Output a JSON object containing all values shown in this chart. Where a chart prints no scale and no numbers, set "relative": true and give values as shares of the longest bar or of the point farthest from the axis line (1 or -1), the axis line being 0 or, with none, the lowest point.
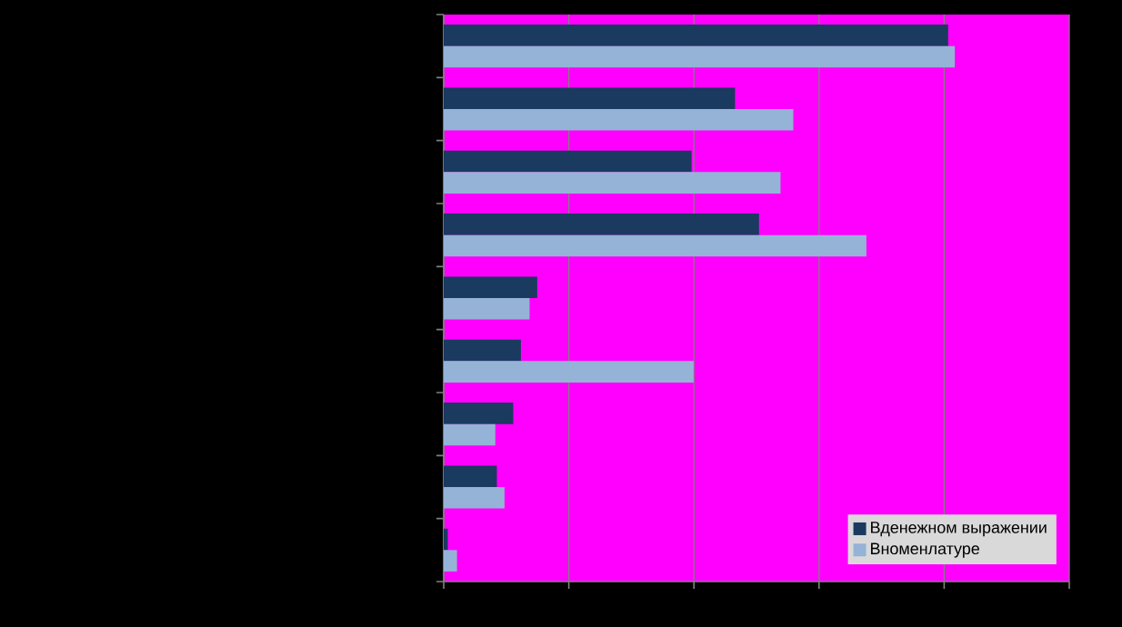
{
  "chart_data": {
    "type": "bar",
    "orientation": "horizontal",
    "relative": true,
    "categories": [
      null,
      null,
      null,
      null,
      null,
      null,
      null,
      null,
      null
    ],
    "series": [
      {
        "name": "Вденежном выражении",
        "color": "#1a3a5f",
        "values": [
          0.987,
          0.57,
          0.485,
          0.617,
          0.183,
          0.151,
          0.136,
          0.104,
          0.008
        ]
      },
      {
        "name": "Вноменлатуре",
        "color": "#95b3d7",
        "values": [
          1,
          0.684,
          0.659,
          0.827,
          0.168,
          0.489,
          0.101,
          0.119,
          0.026
        ]
      }
    ],
    "grid": "x",
    "legend": "bottom right",
    "tick_labels": false
  }
}
